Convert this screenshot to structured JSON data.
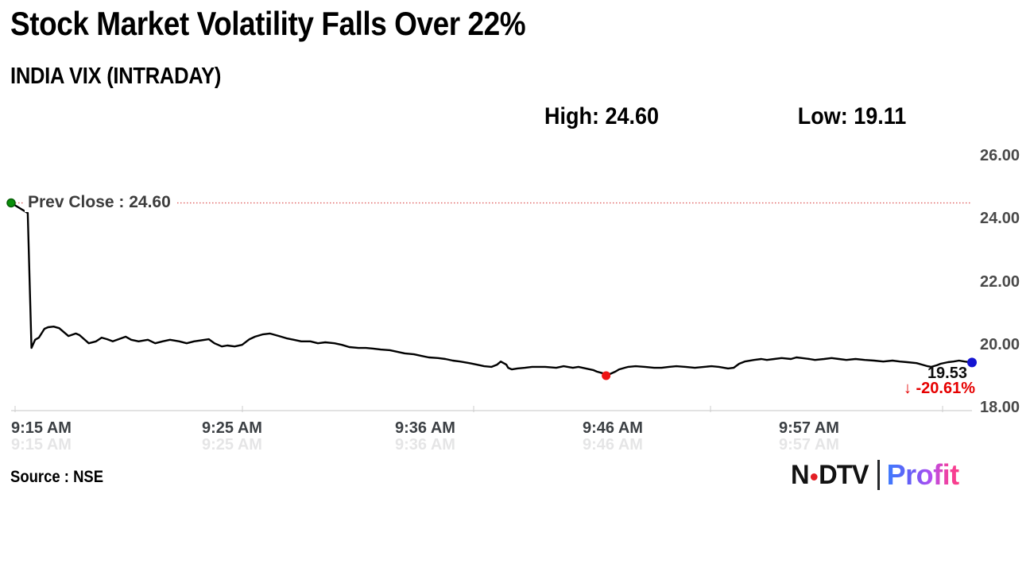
{
  "header": {
    "title": "Stock Market Volatility Falls Over 22%",
    "subtitle": "INDIA VIX (INTRADAY)",
    "high_label": "High: 24.60",
    "low_label": "Low: 19.11"
  },
  "chart_data": {
    "type": "line",
    "title": "INDIA VIX (INTRADAY)",
    "x_axis": {
      "unit": "minutes after 9:15 AM",
      "tick_labels": [
        "9:15 AM",
        "9:25 AM",
        "9:36 AM",
        "9:46 AM",
        "9:57 AM"
      ],
      "range_minutes": [
        0,
        52
      ]
    },
    "y_axis": {
      "tick_labels": [
        "26.00",
        "24.00",
        "22.00",
        "20.00",
        "18.00"
      ],
      "min": 18,
      "max": 26,
      "grid": "off"
    },
    "prev_close": {
      "label": "Prev Close : 24.60",
      "value": 24.6
    },
    "high": 24.6,
    "low": 19.11,
    "last": 19.53,
    "last_label": "19.53",
    "change_label": "↓ -20.61%",
    "legend": "none",
    "colors": {
      "line": "#000000",
      "prev_close_line": "#dd5555",
      "start_marker": "#0a8f0a",
      "low_marker": "#ee1515",
      "end_marker": "#1414d2"
    },
    "series": [
      {
        "name": "INDIA VIX",
        "points": [
          [
            0,
            24.6
          ],
          [
            0.9,
            24.28
          ],
          [
            1.1,
            19.99
          ],
          [
            1.3,
            20.25
          ],
          [
            1.5,
            20.32
          ],
          [
            1.8,
            20.6
          ],
          [
            2,
            20.65
          ],
          [
            2.3,
            20.67
          ],
          [
            2.6,
            20.62
          ],
          [
            3.1,
            20.37
          ],
          [
            3.5,
            20.45
          ],
          [
            3.7,
            20.4
          ],
          [
            4.2,
            20.14
          ],
          [
            4.6,
            20.2
          ],
          [
            4.9,
            20.32
          ],
          [
            5.2,
            20.27
          ],
          [
            5.5,
            20.2
          ],
          [
            6.2,
            20.35
          ],
          [
            6.5,
            20.25
          ],
          [
            6.9,
            20.2
          ],
          [
            7.4,
            20.25
          ],
          [
            7.8,
            20.14
          ],
          [
            8.2,
            20.2
          ],
          [
            8.6,
            20.25
          ],
          [
            9.1,
            20.2
          ],
          [
            9.5,
            20.14
          ],
          [
            9.9,
            20.2
          ],
          [
            10.7,
            20.27
          ],
          [
            11,
            20.14
          ],
          [
            11.4,
            20.04
          ],
          [
            11.7,
            20.07
          ],
          [
            12.1,
            20.04
          ],
          [
            12.5,
            20.09
          ],
          [
            12.9,
            20.27
          ],
          [
            13.2,
            20.35
          ],
          [
            13.6,
            20.42
          ],
          [
            14,
            20.45
          ],
          [
            14.5,
            20.37
          ],
          [
            14.9,
            20.3
          ],
          [
            15.3,
            20.25
          ],
          [
            15.7,
            20.2
          ],
          [
            16.2,
            20.2
          ],
          [
            16.6,
            20.14
          ],
          [
            17,
            20.17
          ],
          [
            17.5,
            20.14
          ],
          [
            17.9,
            20.09
          ],
          [
            18.3,
            20.02
          ],
          [
            18.8,
            19.99
          ],
          [
            19.2,
            19.99
          ],
          [
            19.6,
            19.97
          ],
          [
            20,
            19.94
          ],
          [
            20.5,
            19.92
          ],
          [
            20.9,
            19.87
          ],
          [
            21.3,
            19.82
          ],
          [
            21.8,
            19.79
          ],
          [
            22.2,
            19.74
          ],
          [
            22.6,
            19.69
          ],
          [
            23.1,
            19.67
          ],
          [
            23.5,
            19.64
          ],
          [
            23.9,
            19.59
          ],
          [
            24.3,
            19.56
          ],
          [
            24.8,
            19.51
          ],
          [
            25.2,
            19.46
          ],
          [
            25.6,
            19.41
          ],
          [
            26,
            19.39
          ],
          [
            26.3,
            19.46
          ],
          [
            26.5,
            19.56
          ],
          [
            26.8,
            19.46
          ],
          [
            26.9,
            19.36
          ],
          [
            27.1,
            19.31
          ],
          [
            27.4,
            19.34
          ],
          [
            27.8,
            19.36
          ],
          [
            28.2,
            19.39
          ],
          [
            28.9,
            19.39
          ],
          [
            29.5,
            19.36
          ],
          [
            29.9,
            19.41
          ],
          [
            30.4,
            19.36
          ],
          [
            30.7,
            19.39
          ],
          [
            31.1,
            19.34
          ],
          [
            31.5,
            19.29
          ],
          [
            31.7,
            19.24
          ],
          [
            32,
            19.19
          ],
          [
            32.2,
            19.11
          ],
          [
            32.4,
            19.16
          ],
          [
            32.7,
            19.24
          ],
          [
            32.9,
            19.31
          ],
          [
            33.2,
            19.36
          ],
          [
            33.4,
            19.39
          ],
          [
            33.8,
            19.41
          ],
          [
            34.3,
            19.39
          ],
          [
            34.8,
            19.36
          ],
          [
            35.2,
            19.36
          ],
          [
            35.6,
            19.39
          ],
          [
            36,
            19.41
          ],
          [
            36.5,
            19.39
          ],
          [
            37,
            19.36
          ],
          [
            37.5,
            19.39
          ],
          [
            37.9,
            19.41
          ],
          [
            38.3,
            19.39
          ],
          [
            38.8,
            19.34
          ],
          [
            39.1,
            19.36
          ],
          [
            39.4,
            19.49
          ],
          [
            39.7,
            19.56
          ],
          [
            40.2,
            19.61
          ],
          [
            40.6,
            19.64
          ],
          [
            40.9,
            19.61
          ],
          [
            41.3,
            19.64
          ],
          [
            41.7,
            19.67
          ],
          [
            42.2,
            19.64
          ],
          [
            42.5,
            19.69
          ],
          [
            42.8,
            19.67
          ],
          [
            43.2,
            19.64
          ],
          [
            43.5,
            19.61
          ],
          [
            44,
            19.64
          ],
          [
            44.4,
            19.67
          ],
          [
            44.8,
            19.64
          ],
          [
            45.2,
            19.61
          ],
          [
            45.7,
            19.64
          ],
          [
            46.2,
            19.61
          ],
          [
            46.7,
            19.59
          ],
          [
            47.2,
            19.56
          ],
          [
            47.7,
            19.59
          ],
          [
            48.1,
            19.56
          ],
          [
            48.5,
            19.54
          ],
          [
            49,
            19.51
          ],
          [
            49.3,
            19.46
          ],
          [
            49.6,
            19.41
          ],
          [
            49.8,
            19.39
          ],
          [
            50.1,
            19.44
          ],
          [
            50.3,
            19.49
          ],
          [
            50.7,
            19.54
          ],
          [
            51,
            19.56
          ],
          [
            51.3,
            19.59
          ],
          [
            51.6,
            19.56
          ],
          [
            52,
            19.53
          ]
        ]
      }
    ]
  },
  "footer": {
    "source": "Source : NSE",
    "logo": {
      "ndtv_n": "N",
      "ndtv_dtv": "DTV",
      "profit": "Profit"
    }
  }
}
